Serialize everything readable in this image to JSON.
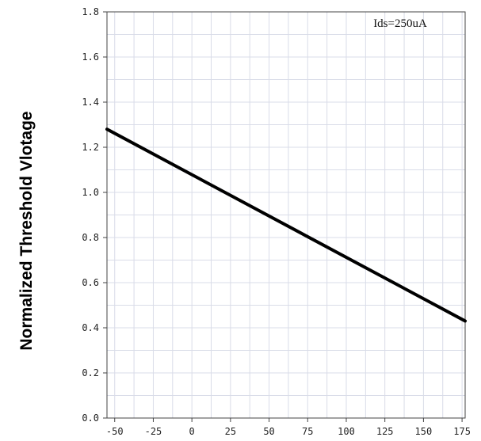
{
  "chart_data": {
    "type": "line",
    "title": "",
    "xlabel": "",
    "ylabel": "Normalized Threshold Vlotage",
    "annotation": "Ids=250uA",
    "xlim": [
      -55,
      177
    ],
    "ylim": [
      0.0,
      1.8
    ],
    "x_ticks": [
      "-50",
      "-25",
      "0",
      "25",
      "50",
      "75",
      "100",
      "125",
      "150",
      "175"
    ],
    "y_ticks": [
      "0.0",
      "0.2",
      "0.4",
      "0.6",
      "0.8",
      "1.0",
      "1.2",
      "1.4",
      "1.6",
      "1.8"
    ],
    "grid": true,
    "series": [
      {
        "x": [
          -55,
          177
        ],
        "y": [
          1.28,
          0.43
        ]
      }
    ]
  }
}
